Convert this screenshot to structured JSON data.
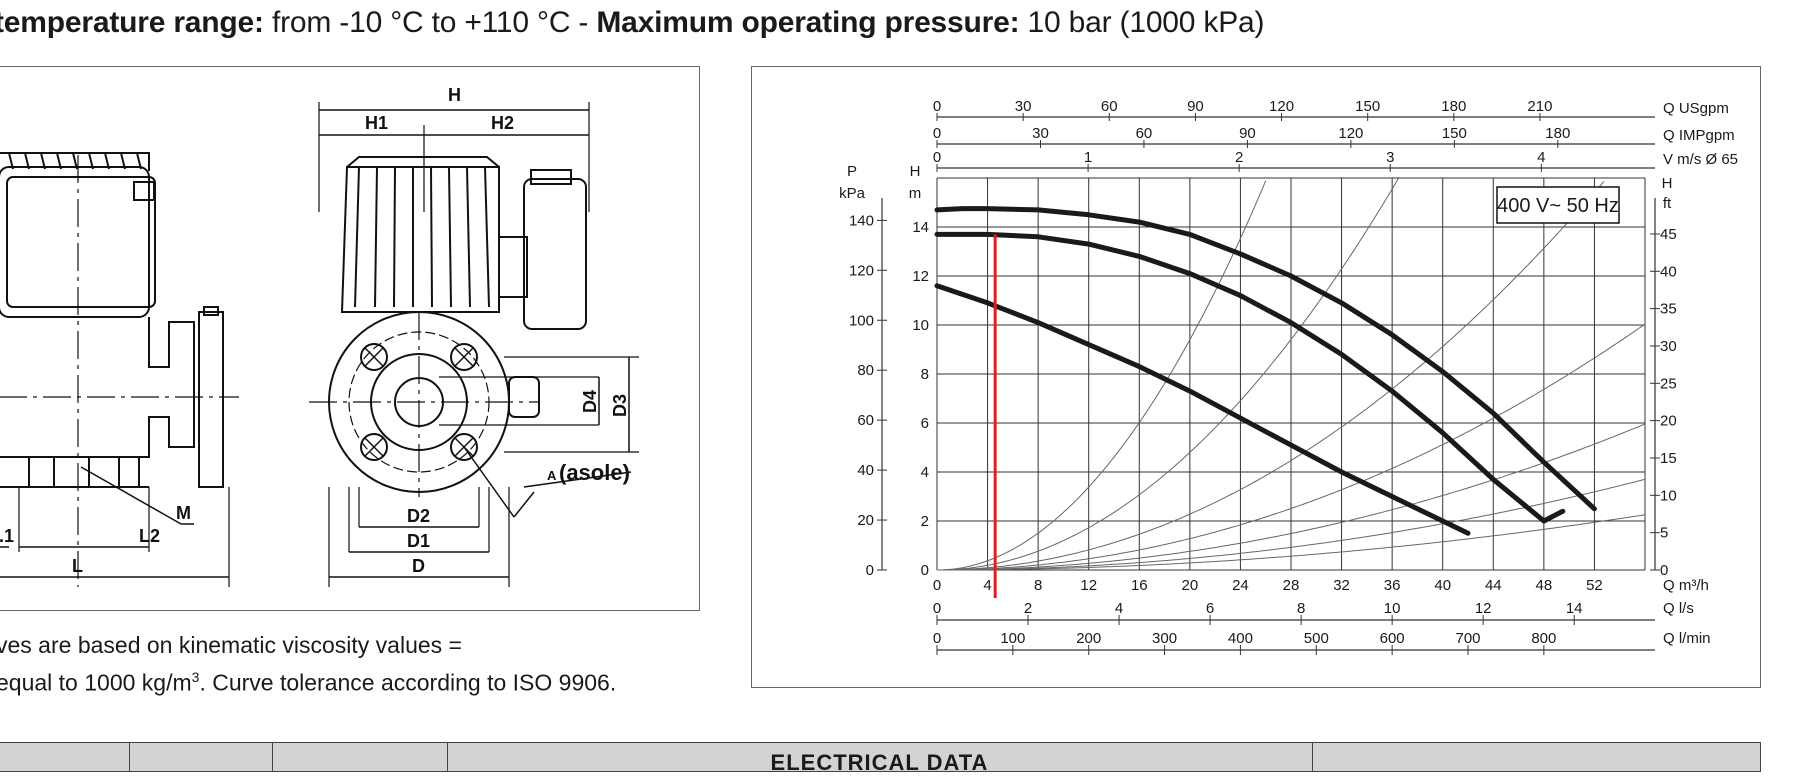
{
  "spec": {
    "temp_label": "temperature range:",
    "temp_value": " from -10 °C to +110 °C - ",
    "pressure_label": "Maximum operating pressure:",
    "pressure_value": " 10 bar (1000 kPa)"
  },
  "drawing": {
    "labels": {
      "H": "H",
      "H1": "H1",
      "H2": "H2",
      "D": "D",
      "D1": "D1",
      "D2": "D2",
      "D3": "D3",
      "D4": "D4",
      "L": "L",
      "L1": ".1",
      "L2": "L2",
      "M": "M",
      "A": "A",
      "A_note": "(asole)"
    }
  },
  "note": {
    "line1": "ves are based on kinematic viscosity values =",
    "line2_pre": "equal to 1000 kg/m",
    "line2_sup": "3",
    "line2_post": ". Curve tolerance according to ISO 9906."
  },
  "chart_data": {
    "type": "line",
    "voltage_label": "400 V~ 50 Hz",
    "left_axes": [
      {
        "unit_top": "P",
        "unit_bottom": "kPa",
        "ticks": [
          0,
          20,
          40,
          60,
          80,
          100,
          120,
          140
        ]
      },
      {
        "unit_top": "H",
        "unit_bottom": "m",
        "ticks": [
          0,
          2,
          4,
          6,
          8,
          10,
          12,
          14
        ]
      }
    ],
    "right_axis": {
      "unit_top": "H",
      "unit_bottom": "ft",
      "ticks": [
        0,
        5,
        10,
        15,
        20,
        25,
        30,
        35,
        40,
        45
      ]
    },
    "x_axis": {
      "unit": "Q m³/h",
      "ticks": [
        0,
        4,
        8,
        12,
        16,
        20,
        24,
        28,
        32,
        36,
        40,
        44,
        48,
        52
      ],
      "lim": [
        0,
        56
      ]
    },
    "y_lim": [
      0,
      16
    ],
    "top_axes": [
      {
        "unit": "Q USgpm",
        "ticks": [
          0,
          30,
          60,
          90,
          120,
          150,
          180,
          210
        ]
      },
      {
        "unit": "Q IMPgpm",
        "ticks": [
          0,
          30,
          60,
          90,
          120,
          150,
          180
        ]
      },
      {
        "unit": "V m/s Ø 65",
        "ticks": [
          0,
          1,
          2,
          3,
          4
        ]
      }
    ],
    "bottom_axes": [
      {
        "unit": "Q l/s",
        "ticks": [
          0,
          2,
          4,
          6,
          8,
          10,
          12,
          14
        ]
      },
      {
        "unit": "Q l/min",
        "ticks": [
          0,
          100,
          200,
          300,
          400,
          500,
          600,
          700,
          800
        ]
      }
    ],
    "series": [
      {
        "x": [
          0,
          2,
          4,
          8,
          12,
          16,
          20,
          24,
          28,
          32,
          36,
          40,
          44,
          48,
          52
        ],
        "y": [
          14.7,
          14.75,
          14.75,
          14.7,
          14.5,
          14.2,
          13.7,
          12.9,
          12.0,
          10.9,
          9.6,
          8.1,
          6.4,
          4.4,
          2.5
        ]
      },
      {
        "x": [
          0,
          4,
          8,
          12,
          16,
          20,
          24,
          28,
          32,
          36,
          40,
          44,
          48,
          49.5
        ],
        "y": [
          13.7,
          13.7,
          13.6,
          13.3,
          12.8,
          12.1,
          11.2,
          10.1,
          8.8,
          7.3,
          5.6,
          3.7,
          2.0,
          2.4
        ]
      },
      {
        "x": [
          0,
          4,
          8,
          12,
          16,
          20,
          24,
          28,
          32,
          36,
          40,
          42
        ],
        "y": [
          11.6,
          10.9,
          10.1,
          9.2,
          8.3,
          7.3,
          6.2,
          5.1,
          4.0,
          3.0,
          2.0,
          1.5
        ]
      }
    ],
    "system_curves_k": [
      0.0235,
      0.012,
      0.0057,
      0.0032,
      0.0019,
      0.00118,
      0.00072
    ],
    "marker_x": 4.6
  },
  "table": {
    "header": "ELECTRICAL DATA"
  }
}
